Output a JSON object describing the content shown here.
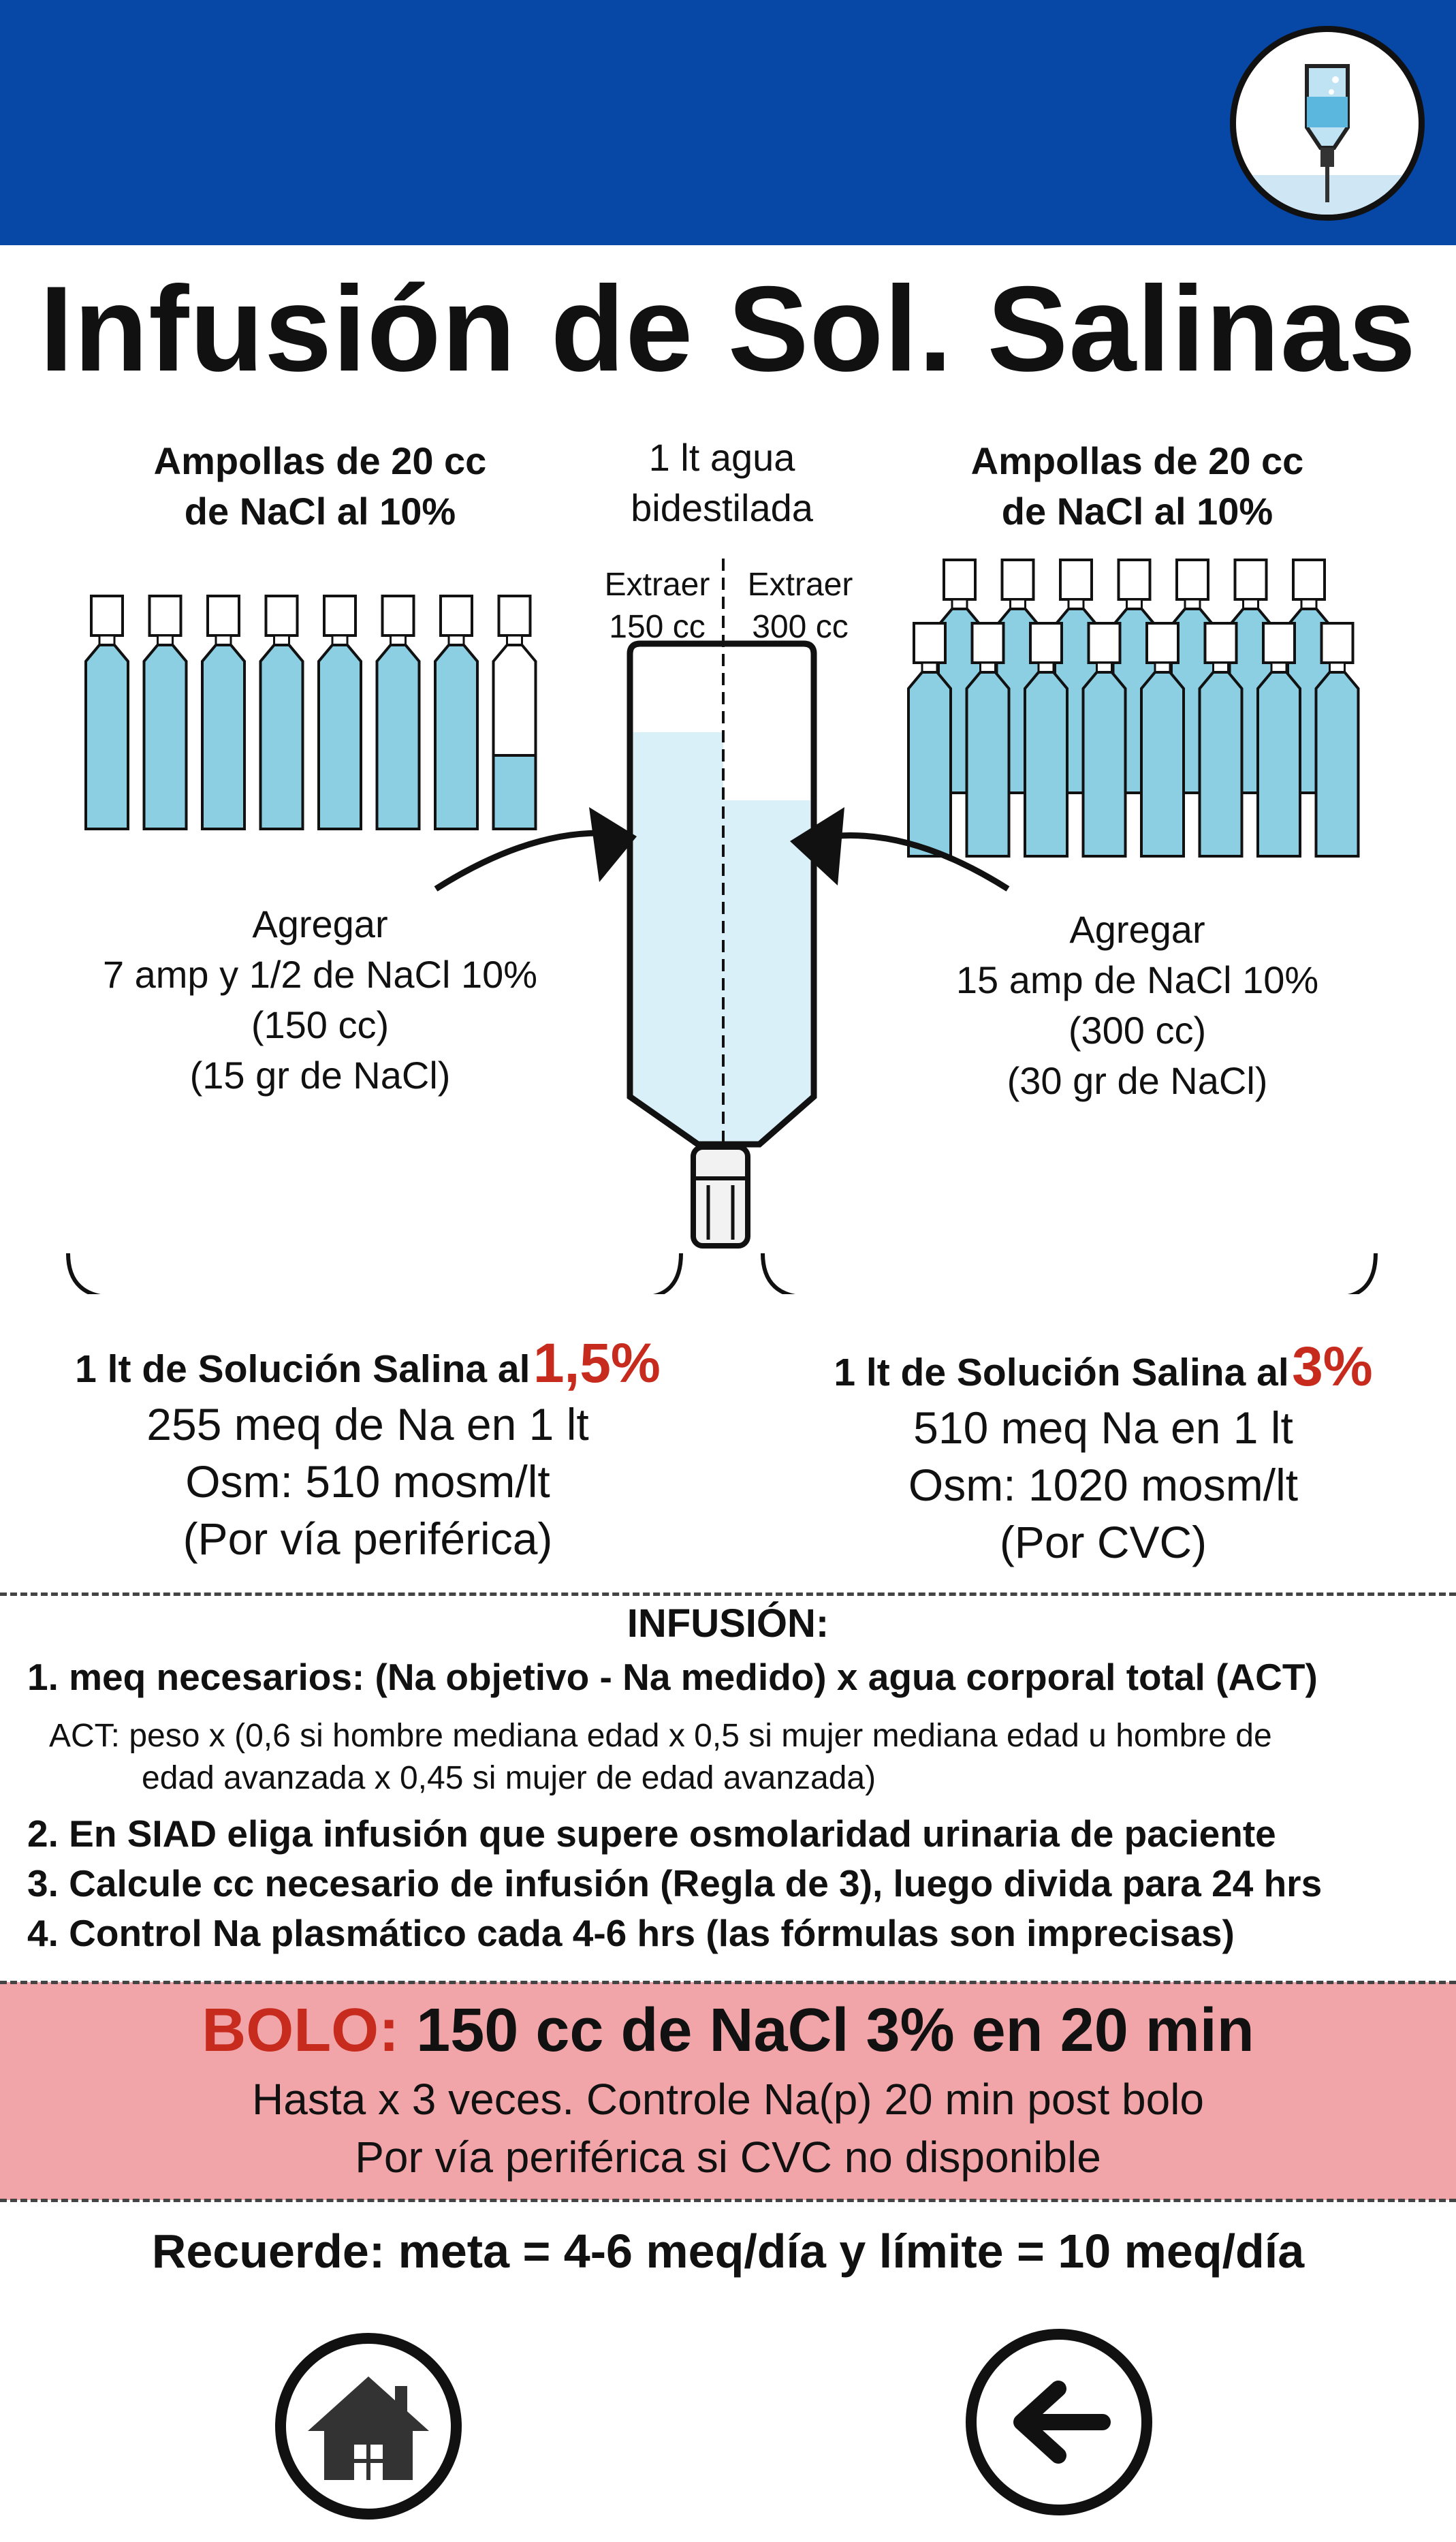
{
  "header": {
    "logo_icon": "iv-bag-icon",
    "color": "#0747a6"
  },
  "title": "Infusión de Sol. Salinas",
  "left_ampoules": {
    "line1": "Ampollas de 20 cc",
    "line2": "de NaCl al 10%"
  },
  "right_ampoules": {
    "line1": "Ampollas de 20 cc",
    "line2": "de NaCl al 10%"
  },
  "bottle": {
    "label1": "1 lt agua",
    "label2": "bidestilada",
    "extract_left1": "Extraer",
    "extract_left2": "150 cc",
    "extract_right1": "Extraer",
    "extract_right2": "300 cc"
  },
  "left_add": {
    "l1": "Agregar",
    "l2": "7 amp y 1/2 de NaCl 10%",
    "l3": "(150 cc)",
    "l4": "(15 gr de NaCl)"
  },
  "right_add": {
    "l1": "Agregar",
    "l2": "15 amp de NaCl 10%",
    "l3": "(300 cc)",
    "l4": "(30 gr de NaCl)"
  },
  "left_result": {
    "title": "1 lt de Solución Salina al",
    "pct": "1,5%",
    "l1": "255 meq de Na en 1 lt",
    "l2": "Osm: 510 mosm/lt",
    "l3": "(Por vía periférica)"
  },
  "right_result": {
    "title": "1 lt de Solución Salina al",
    "pct": "3%",
    "l1": "510 meq Na en 1 lt",
    "l2": "Osm: 1020 mosm/lt",
    "l3": "(Por CVC)"
  },
  "infusion": {
    "heading": "INFUSIÓN:",
    "item1": "1. meq necesarios: (Na objetivo - Na medido) x agua corporal total (ACT)",
    "note1": "ACT: peso x (0,6 si hombre mediana edad x 0,5 si mujer mediana edad u hombre de",
    "note2": "edad avanzada x 0,45 si mujer de edad avanzada)",
    "item2": "2. En SIAD eliga infusión que supere osmolaridad urinaria de paciente",
    "item3": "3. Calcule cc necesario de infusión (Regla de 3), luego divida para 24 hrs",
    "item4": "4. Control Na plasmático cada 4-6 hrs (las fórmulas son imprecisas)"
  },
  "bolo": {
    "label": "BOLO:",
    "text": "150 cc de NaCl 3% en 20 min",
    "line1": "Hasta x 3 veces. Controle Na(p) 20 min post bolo",
    "line2": "Por vía periférica si CVC no disponible"
  },
  "recuerde": "Recuerde: meta = 4-6 meq/día y límite = 10 meq/día",
  "nav": {
    "home_icon": "home-icon",
    "back_icon": "back-arrow-icon"
  },
  "colors": {
    "accent_red": "#c62b1e",
    "bolo_bg": "#f2a5a9",
    "liquid": "#8ccfe3"
  }
}
